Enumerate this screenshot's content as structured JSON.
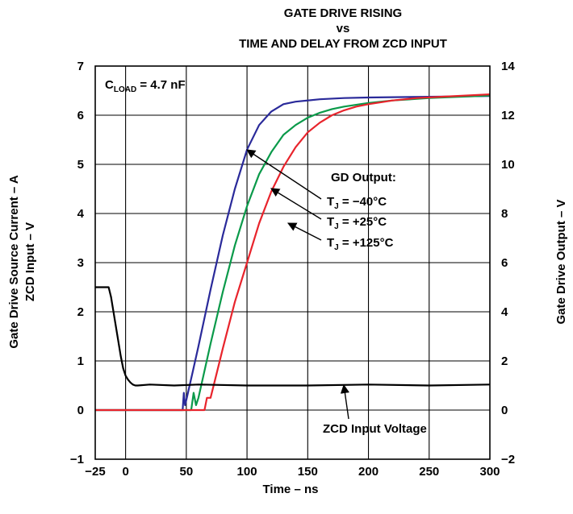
{
  "chart_data": {
    "type": "line",
    "title_lines": [
      "GATE DRIVE RISING",
      "vs",
      "TIME AND DELAY FROM ZCD INPUT"
    ],
    "xlabel": "Time – ns",
    "ylabel_left_lines": [
      "Gate Drive Source Current – A",
      "ZCD Input – V"
    ],
    "ylabel_right": "Gate Drive Output – V",
    "xlim": [
      -25,
      300
    ],
    "ylim_left": [
      -1,
      7
    ],
    "ylim_right": [
      -2,
      14
    ],
    "x_ticks": [
      -25,
      0,
      50,
      100,
      150,
      200,
      250,
      300
    ],
    "x_tick_labels": [
      "−25",
      "0",
      "50",
      "100",
      "150",
      "200",
      "250",
      "300"
    ],
    "y_left_ticks": [
      -1,
      0,
      1,
      2,
      3,
      4,
      5,
      6,
      7
    ],
    "y_left_tick_labels": [
      "−1",
      "0",
      "1",
      "2",
      "3",
      "4",
      "5",
      "6",
      "7"
    ],
    "y_right_ticks": [
      -2,
      0,
      2,
      4,
      6,
      8,
      10,
      12,
      14
    ],
    "y_right_tick_labels": [
      "−2",
      "0",
      "2",
      "4",
      "6",
      "8",
      "10",
      "12",
      "14"
    ],
    "grid": true,
    "annotation": {
      "main": "C",
      "sub": "LOAD",
      "rest": " = 4.7 nF"
    },
    "legend_header": "GD Output:",
    "series": [
      {
        "name": "T_J = −40°C",
        "label_main": "T",
        "label_sub": "J",
        "label_rest": " = −40°C",
        "axis": "right",
        "color": "#2a2a9a",
        "x": [
          -25,
          47,
          48,
          49,
          50,
          55,
          60,
          70,
          80,
          90,
          100,
          110,
          120,
          130,
          140,
          160,
          180,
          200,
          250,
          300
        ],
        "y": [
          0,
          0,
          0.7,
          0.2,
          0.4,
          1.5,
          2.6,
          4.9,
          7.1,
          9.0,
          10.6,
          11.6,
          12.15,
          12.45,
          12.55,
          12.65,
          12.7,
          12.72,
          12.75,
          12.78
        ]
      },
      {
        "name": "T_J = +25°C",
        "label_main": "T",
        "label_sub": "J",
        "label_rest": " = +25°C",
        "axis": "right",
        "color": "#0a9a4a",
        "x": [
          -25,
          54,
          56,
          58,
          60,
          65,
          70,
          80,
          90,
          100,
          110,
          120,
          130,
          140,
          150,
          160,
          170,
          180,
          200,
          220,
          250,
          300
        ],
        "y": [
          0,
          0,
          0.7,
          0.2,
          0.5,
          1.6,
          2.7,
          4.8,
          6.7,
          8.3,
          9.6,
          10.5,
          11.2,
          11.6,
          11.9,
          12.1,
          12.25,
          12.35,
          12.5,
          12.6,
          12.7,
          12.8
        ]
      },
      {
        "name": "T_J = +125°C",
        "label_main": "T",
        "label_sub": "J",
        "label_rest": " = +125°C",
        "axis": "right",
        "color": "#e8242c",
        "x": [
          -25,
          65,
          67,
          70,
          75,
          80,
          90,
          100,
          110,
          120,
          130,
          140,
          150,
          160,
          170,
          180,
          190,
          200,
          220,
          240,
          260,
          280,
          300
        ],
        "y": [
          0,
          0,
          0.5,
          0.5,
          1.5,
          2.5,
          4.4,
          6.0,
          7.6,
          8.9,
          9.9,
          10.7,
          11.3,
          11.7,
          12.0,
          12.2,
          12.35,
          12.45,
          12.6,
          12.7,
          12.75,
          12.8,
          12.85
        ]
      },
      {
        "name": "ZCD Input Voltage",
        "axis": "left",
        "color": "#000000",
        "x": [
          -25,
          -14,
          -12,
          -10,
          -8,
          -6,
          -4,
          -2,
          0,
          2,
          4,
          6,
          8,
          10,
          20,
          40,
          60,
          100,
          150,
          200,
          250,
          300
        ],
        "y": [
          2.5,
          2.5,
          2.3,
          2.0,
          1.7,
          1.4,
          1.1,
          0.85,
          0.7,
          0.62,
          0.56,
          0.52,
          0.5,
          0.5,
          0.52,
          0.5,
          0.52,
          0.5,
          0.5,
          0.52,
          0.5,
          0.52
        ]
      }
    ]
  }
}
